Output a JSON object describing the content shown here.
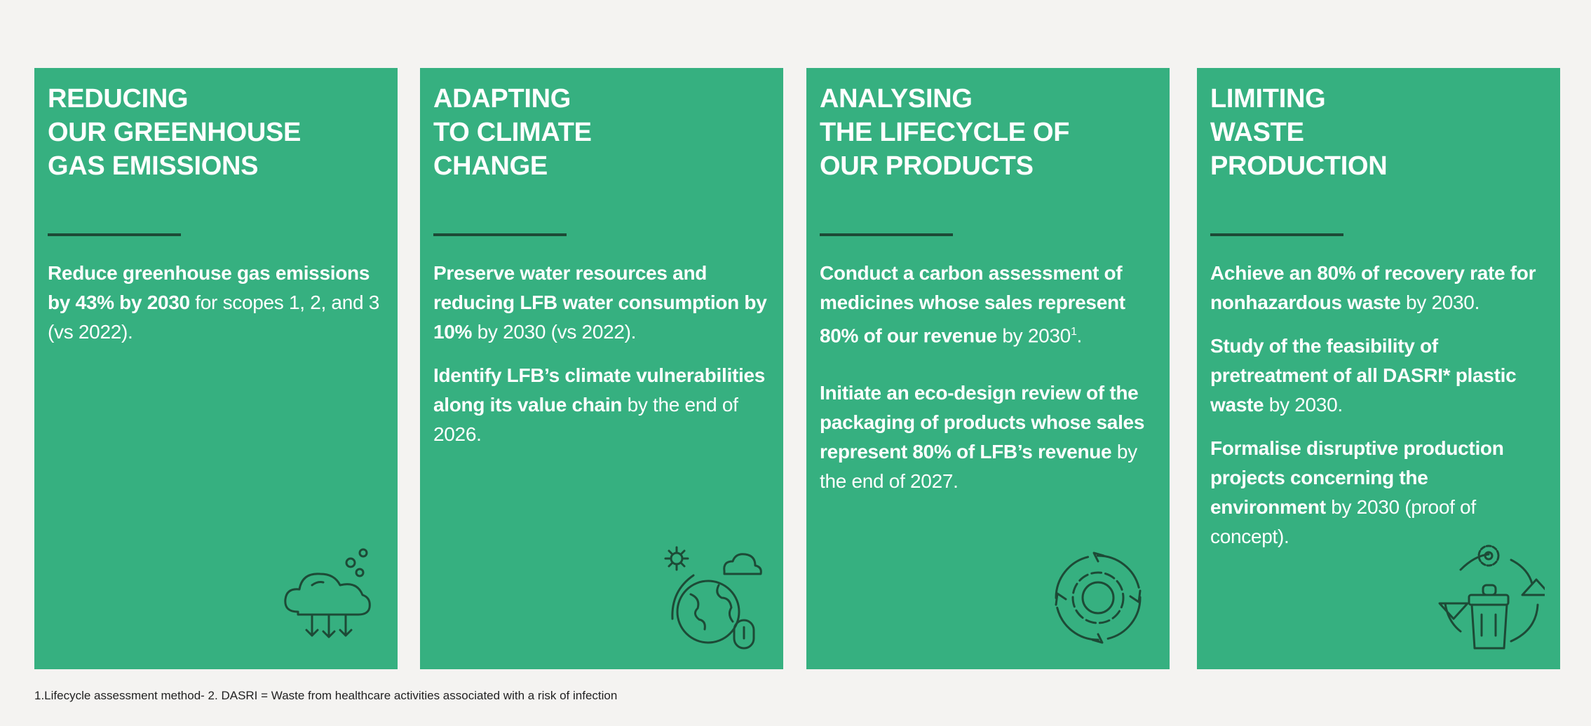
{
  "colors": {
    "card": "#36b080",
    "divider": "#1d4a36",
    "background": "#f4f3f1"
  },
  "cards": [
    {
      "title": "REDUCING\nOUR GREENHOUSE\nGAS EMISSIONS",
      "icon": "cloud-rain-arrows-icon",
      "paragraphs": [
        [
          {
            "t": "Reduce greenhouse gas emissions by 43% by 2030",
            "b": true
          },
          {
            "t": " for scopes 1, 2, and 3 (vs 2022).",
            "b": false
          }
        ]
      ]
    },
    {
      "title": "ADAPTING\nTO CLIMATE\nCHANGE",
      "icon": "globe-climate-icon",
      "paragraphs": [
        [
          {
            "t": "Preserve water resources and reducing LFB water consumption by 10%",
            "b": true
          },
          {
            "t": " by 2030 (vs 2022).",
            "b": false
          }
        ],
        [
          {
            "t": "Identify LFB’s climate vulnerabilities along its value chain",
            "b": true
          },
          {
            "t": " by the end of 2026.",
            "b": false
          }
        ]
      ]
    },
    {
      "title": "ANALYSING\nTHE LIFECYCLE OF\nOUR PRODUCTS",
      "icon": "gear-cycle-icon",
      "paragraphs": [
        [
          {
            "t": "Conduct a carbon assessment of medicines whose sales represent 80% of our revenue",
            "b": true
          },
          {
            "t": " by 2030",
            "b": false
          },
          {
            "t": "1",
            "sup": true
          },
          {
            "t": ".",
            "b": false
          }
        ],
        [
          {
            "t": "Initiate an eco-design review of the packaging of products whose sales represent 80% of LFB’s revenue",
            "b": true
          },
          {
            "t": " by the end of 2027.",
            "b": false
          }
        ]
      ]
    },
    {
      "title": "LIMITING\nWASTE\nPRODUCTION",
      "icon": "recycle-bin-icon",
      "paragraphs": [
        [
          {
            "t": "Achieve an 80% of recovery rate for nonhazardous waste",
            "b": true
          },
          {
            "t": " by 2030.",
            "b": false
          }
        ],
        [
          {
            "t": "Study of the feasibility of pretreatment of all DASRI* plastic waste",
            "b": true
          },
          {
            "t": " by 2030.",
            "b": false
          }
        ],
        [
          {
            "t": "Formalise disruptive production projects concerning the environment",
            "b": true
          },
          {
            "t": " by 2030 (proof of concept).",
            "b": false
          }
        ]
      ]
    }
  ],
  "footer": "1.Lifecycle assessment method- 2. DASRI = Waste from healthcare activities associated with a risk of infection"
}
